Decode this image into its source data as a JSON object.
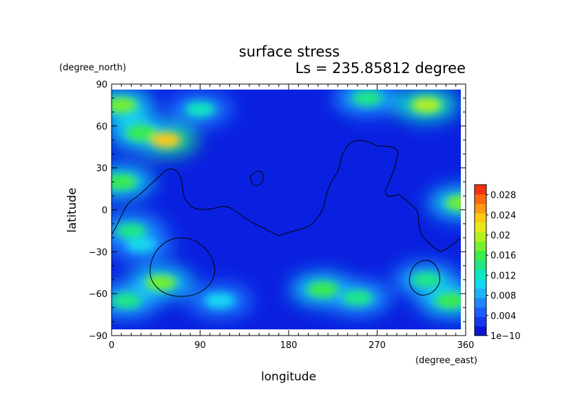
{
  "chart_data": {
    "type": "heatmap",
    "title": "surface stress",
    "subtitle": "Ls = 235.85812 degree",
    "xlabel": "longitude",
    "ylabel": "latitude",
    "xunit": "(degree_east)",
    "yunit": "(degree_north)",
    "xlim": [
      0,
      360
    ],
    "ylim": [
      -90,
      90
    ],
    "xticks": [
      "0",
      "90",
      "180",
      "270",
      "360"
    ],
    "yticks": [
      "90",
      "60",
      "30",
      "0",
      "−30",
      "−60",
      "−90"
    ],
    "colorbar": {
      "min": 1e-10,
      "max": 0.03,
      "labels": [
        "1e−10",
        "0.004",
        "0.008",
        "0.012",
        "0.016",
        "0.02",
        "0.024",
        "0.028"
      ],
      "colors": [
        "#0a14d6",
        "#1438ef",
        "#1e5cff",
        "#1f87ff",
        "#1cb2ff",
        "#12d8f0",
        "#0ae8c0",
        "#1ee884",
        "#3aec4c",
        "#76f02e",
        "#b4f020",
        "#e8e81a",
        "#ffc814",
        "#ff9a12",
        "#ff6a10",
        "#f23214"
      ]
    },
    "field": {
      "description": "surface stress magnitude by longitude and latitude",
      "hotspots": [
        {
          "lon": 55,
          "lat": 50,
          "value": 0.024
        },
        {
          "lon": 30,
          "lat": 55,
          "value": 0.016
        },
        {
          "lon": 10,
          "lat": 75,
          "value": 0.018
        },
        {
          "lon": 320,
          "lat": 75,
          "value": 0.02
        },
        {
          "lon": 260,
          "lat": 80,
          "value": 0.014
        },
        {
          "lon": 90,
          "lat": 72,
          "value": 0.012
        },
        {
          "lon": 10,
          "lat": 20,
          "value": 0.016
        },
        {
          "lon": 355,
          "lat": 5,
          "value": 0.018
        },
        {
          "lon": 20,
          "lat": -15,
          "value": 0.014
        },
        {
          "lon": 50,
          "lat": -52,
          "value": 0.018
        },
        {
          "lon": 15,
          "lat": -65,
          "value": 0.014
        },
        {
          "lon": 215,
          "lat": -57,
          "value": 0.016
        },
        {
          "lon": 250,
          "lat": -63,
          "value": 0.014
        },
        {
          "lon": 320,
          "lat": -50,
          "value": 0.014
        },
        {
          "lon": 345,
          "lat": -65,
          "value": 0.016
        },
        {
          "lon": 110,
          "lat": -65,
          "value": 0.01
        },
        {
          "lon": 30,
          "lat": -25,
          "value": 0.01
        }
      ]
    }
  }
}
